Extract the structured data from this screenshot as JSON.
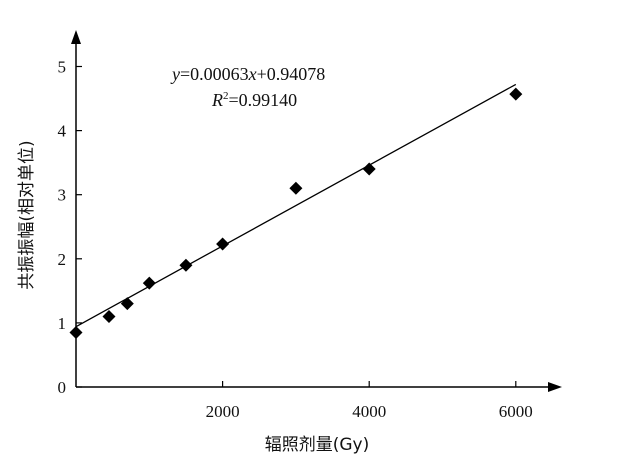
{
  "chart_data": {
    "type": "scatter",
    "xlabel": "辐照剂量(Gy)",
    "ylabel": "共振振幅(相对单位)",
    "xlim": [
      0,
      6500
    ],
    "ylim": [
      0,
      5.5
    ],
    "xticks": [
      2000,
      4000,
      6000
    ],
    "yticks": [
      0,
      1,
      2,
      3,
      4,
      5
    ],
    "xtick_labels": [
      "2000",
      "4000",
      "6000"
    ],
    "ytick_labels": [
      "0",
      "1",
      "2",
      "3",
      "4",
      "5"
    ],
    "points": [
      {
        "x": 0,
        "y": 0.85
      },
      {
        "x": 450,
        "y": 1.1
      },
      {
        "x": 700,
        "y": 1.3
      },
      {
        "x": 1000,
        "y": 1.62
      },
      {
        "x": 1500,
        "y": 1.9
      },
      {
        "x": 2000,
        "y": 2.23
      },
      {
        "x": 3000,
        "y": 3.1
      },
      {
        "x": 4000,
        "y": 3.4
      },
      {
        "x": 6000,
        "y": 4.57
      }
    ],
    "fit": {
      "slope": 0.00063,
      "intercept": 0.94078,
      "x_range": [
        0,
        6000
      ]
    },
    "annotation": {
      "equation_y": "y",
      "equation_rest": "=0.00063",
      "equation_x": "x",
      "equation_tail": "+0.94078",
      "r2_R": "R",
      "r2_sup": "2",
      "r2_value": "=0.99140"
    },
    "grid": false,
    "legend": "none",
    "marker": "diamond",
    "color": "#000000"
  }
}
